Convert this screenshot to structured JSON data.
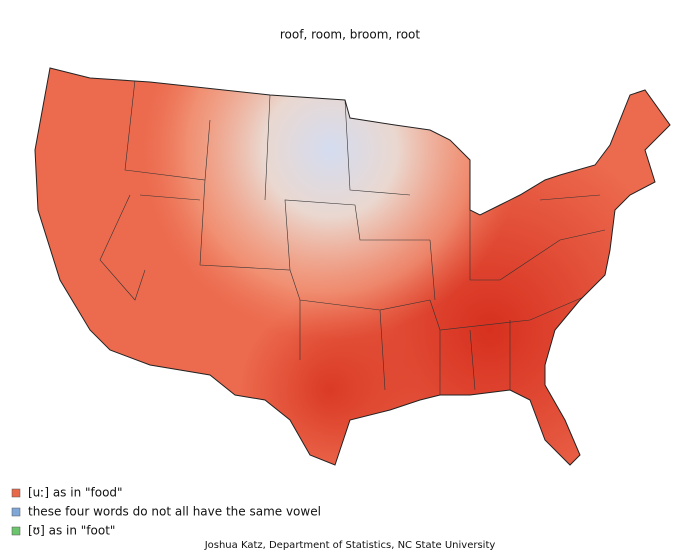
{
  "title": "roof, room, broom, root",
  "legend": [
    {
      "label": "[uː] as in \"food\"",
      "color": "#e8684a"
    },
    {
      "label": "these four words do not all have the same vowel",
      "color": "#7fa8d8"
    },
    {
      "label": "[ʊ] as in \"foot\"",
      "color": "#6cc46c"
    }
  ],
  "credit": "Joshua Katz, Department of Statistics, NC State University"
}
